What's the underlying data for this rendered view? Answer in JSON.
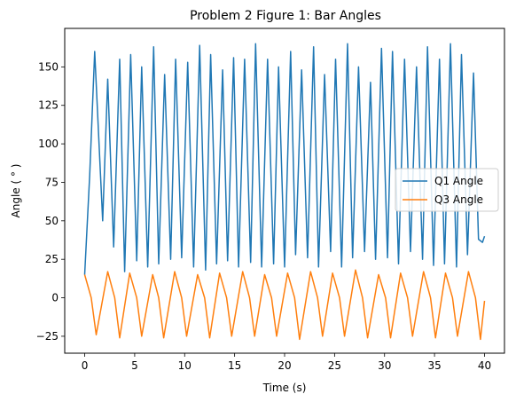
{
  "chart_data": {
    "type": "line",
    "title": "Problem 2 Figure 1: Bar Angles",
    "xlabel": "Time (s)",
    "ylabel": "Angle ( ° )",
    "xlim": [
      -2,
      42
    ],
    "ylim": [
      -36,
      175
    ],
    "xticks": [
      0,
      5,
      10,
      15,
      20,
      25,
      30,
      35,
      40
    ],
    "yticks": [
      -25,
      0,
      25,
      50,
      75,
      100,
      125,
      150
    ],
    "grid": false,
    "legend_position": "center-right",
    "colors": {
      "q1": "#1f77b4",
      "q3": "#ff7f0e"
    },
    "series": [
      {
        "name": "Q1 Angle",
        "color": "#1f77b4",
        "x": [
          0,
          0.5,
          1.0,
          1.8,
          2.3,
          2.9,
          3.5,
          4.0,
          4.6,
          5.2,
          5.7,
          6.3,
          6.9,
          7.4,
          8.0,
          8.6,
          9.1,
          9.7,
          10.3,
          10.9,
          11.5,
          12.1,
          12.6,
          13.2,
          13.8,
          14.3,
          14.9,
          15.4,
          16.0,
          16.6,
          17.1,
          17.7,
          18.3,
          18.9,
          19.4,
          20.0,
          20.6,
          21.1,
          21.7,
          22.3,
          22.9,
          23.4,
          24.0,
          24.6,
          25.1,
          25.7,
          26.3,
          26.8,
          27.4,
          28.0,
          28.6,
          29.1,
          29.7,
          30.3,
          30.8,
          31.4,
          32.0,
          32.6,
          33.2,
          33.8,
          34.3,
          34.9,
          35.5,
          36.0,
          36.6,
          37.2,
          37.7,
          38.3,
          38.9,
          39.4,
          39.8,
          40.0
        ],
        "y": [
          15,
          80,
          160,
          50,
          142,
          33,
          155,
          17,
          158,
          24,
          150,
          20,
          163,
          22,
          145,
          25,
          155,
          26,
          153,
          20,
          164,
          18,
          158,
          22,
          148,
          24,
          156,
          20,
          155,
          23,
          165,
          20,
          155,
          22,
          150,
          20,
          160,
          28,
          148,
          26,
          163,
          20,
          145,
          30,
          155,
          20,
          165,
          26,
          150,
          30,
          140,
          25,
          162,
          26,
          160,
          22,
          155,
          30,
          150,
          25,
          163,
          21,
          155,
          22,
          165,
          20,
          158,
          28,
          146,
          38,
          36,
          40
        ]
      },
      {
        "name": "Q3 Angle",
        "color": "#ff7f0e",
        "x": [
          0,
          0.65,
          1.15,
          2.3,
          3.0,
          3.5,
          4.5,
          5.2,
          5.7,
          6.8,
          7.4,
          7.9,
          9.0,
          9.7,
          10.2,
          11.3,
          12.0,
          12.5,
          13.5,
          14.2,
          14.7,
          15.8,
          16.5,
          17.0,
          18.0,
          18.7,
          19.2,
          20.3,
          21.0,
          21.5,
          22.6,
          23.3,
          23.8,
          24.8,
          25.5,
          26.0,
          27.1,
          27.8,
          28.3,
          29.4,
          30.1,
          30.6,
          31.6,
          32.3,
          32.8,
          33.9,
          34.6,
          35.1,
          36.1,
          36.8,
          37.3,
          38.4,
          39.1,
          39.6,
          40.0
        ],
        "y": [
          15,
          0,
          -24,
          17,
          0,
          -26,
          16,
          0,
          -25,
          15,
          0,
          -26,
          17,
          0,
          -25,
          15,
          0,
          -26,
          16,
          0,
          -25,
          17,
          0,
          -25,
          15,
          0,
          -25,
          16,
          0,
          -27,
          17,
          0,
          -25,
          16,
          0,
          -25,
          18,
          0,
          -26,
          15,
          0,
          -26,
          16,
          0,
          -25,
          17,
          0,
          -26,
          16,
          0,
          -25,
          17,
          0,
          -27,
          -2
        ]
      }
    ]
  }
}
